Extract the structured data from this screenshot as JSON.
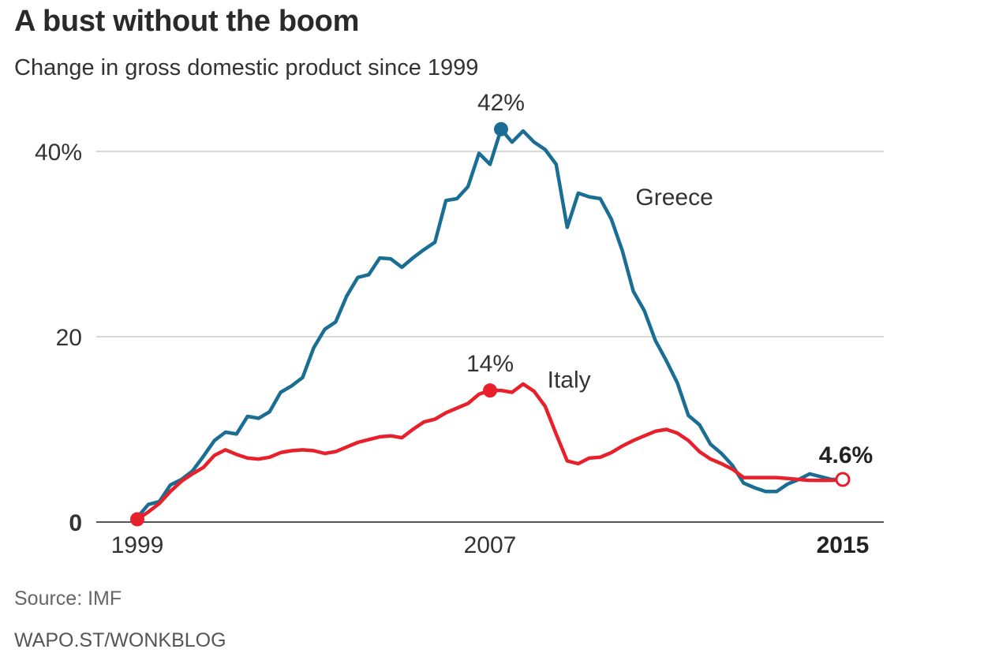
{
  "title": "A bust without the boom",
  "subtitle": "Change in gross domestic product since 1999",
  "source": "Source: IMF",
  "credit": "WAPO.ST/WONKBLOG",
  "colors": {
    "greece": "#1a6e93",
    "italy": "#e8202b",
    "grid": "#cccccc",
    "axis": "#555555"
  },
  "chart_data": {
    "type": "line",
    "title": "A bust without the boom",
    "subtitle": "Change in gross domestic product since 1999",
    "xlabel": "",
    "ylabel": "",
    "xlim": [
      1999,
      2015
    ],
    "ylim": [
      0,
      40
    ],
    "x_ticks": [
      {
        "value": 1999,
        "label": "1999",
        "bold": false
      },
      {
        "value": 2007,
        "label": "2007",
        "bold": false
      },
      {
        "value": 2015,
        "label": "2015",
        "bold": true
      }
    ],
    "y_ticks": [
      {
        "value": 0,
        "label": "0",
        "bold": true
      },
      {
        "value": 20,
        "label": "20",
        "bold": false
      },
      {
        "value": 40,
        "label": "40%",
        "bold": false
      }
    ],
    "grid": true,
    "series": [
      {
        "name": "Greece",
        "color": "#1a6e93",
        "x": [
          1999.0,
          1999.25,
          1999.5,
          1999.75,
          2000.0,
          2000.25,
          2000.5,
          2000.75,
          2001.0,
          2001.25,
          2001.5,
          2001.75,
          2002.0,
          2002.25,
          2002.5,
          2002.75,
          2003.0,
          2003.25,
          2003.5,
          2003.75,
          2004.0,
          2004.25,
          2004.5,
          2004.75,
          2005.0,
          2005.25,
          2005.5,
          2005.75,
          2006.0,
          2006.25,
          2006.5,
          2006.75,
          2007.0,
          2007.25,
          2007.5,
          2007.75,
          2008.0,
          2008.25,
          2008.5,
          2008.75,
          2009.0,
          2009.25,
          2009.5,
          2009.75,
          2010.0,
          2010.25,
          2010.5,
          2010.75,
          2011.0,
          2011.25,
          2011.5,
          2011.75,
          2012.0,
          2012.25,
          2012.5,
          2012.75,
          2013.0,
          2013.25,
          2013.5,
          2013.75,
          2014.0,
          2014.25,
          2014.5,
          2014.75,
          2015.0
        ],
        "values": [
          0.5,
          1.9,
          2.2,
          4.0,
          4.6,
          5.5,
          7.1,
          8.8,
          9.7,
          9.5,
          11.4,
          11.2,
          11.9,
          14.0,
          14.7,
          15.6,
          18.8,
          20.8,
          21.6,
          24.4,
          26.4,
          26.7,
          28.5,
          28.4,
          27.5,
          28.5,
          29.4,
          30.2,
          34.7,
          34.9,
          36.2,
          39.8,
          38.6,
          42.4,
          41.0,
          42.2,
          41.0,
          40.2,
          38.6,
          31.8,
          35.5,
          35.1,
          34.9,
          32.7,
          29.3,
          24.9,
          22.8,
          19.6,
          17.4,
          15.0,
          11.5,
          10.5,
          8.4,
          7.4,
          6.1,
          4.2,
          3.7,
          3.3,
          3.3,
          4.1,
          4.6,
          5.2,
          4.9,
          4.6,
          4.6
        ],
        "label_value": 42.4,
        "label_x": 2007.25
      },
      {
        "name": "Italy",
        "color": "#e8202b",
        "x": [
          1999.0,
          1999.25,
          1999.5,
          1999.75,
          2000.0,
          2000.25,
          2000.5,
          2000.75,
          2001.0,
          2001.25,
          2001.5,
          2001.75,
          2002.0,
          2002.25,
          2002.5,
          2002.75,
          2003.0,
          2003.25,
          2003.5,
          2003.75,
          2004.0,
          2004.25,
          2004.5,
          2004.75,
          2005.0,
          2005.25,
          2005.5,
          2005.75,
          2006.0,
          2006.25,
          2006.5,
          2006.75,
          2007.0,
          2007.25,
          2007.5,
          2007.75,
          2008.0,
          2008.25,
          2008.5,
          2008.75,
          2009.0,
          2009.25,
          2009.5,
          2009.75,
          2010.0,
          2010.25,
          2010.5,
          2010.75,
          2011.0,
          2011.25,
          2011.5,
          2011.75,
          2012.0,
          2012.25,
          2012.5,
          2012.75,
          2013.0,
          2013.25,
          2013.5,
          2013.75,
          2014.0,
          2014.25,
          2014.5,
          2014.75,
          2015.0
        ],
        "values": [
          0.3,
          1.1,
          2.0,
          3.3,
          4.4,
          5.2,
          5.9,
          7.2,
          7.8,
          7.3,
          6.9,
          6.8,
          7.0,
          7.5,
          7.7,
          7.8,
          7.7,
          7.4,
          7.6,
          8.1,
          8.6,
          8.9,
          9.2,
          9.3,
          9.1,
          10.0,
          10.8,
          11.1,
          11.8,
          12.3,
          12.8,
          13.8,
          14.2,
          14.2,
          14.0,
          14.9,
          14.1,
          12.5,
          9.5,
          6.6,
          6.3,
          6.9,
          7.0,
          7.5,
          8.2,
          8.8,
          9.3,
          9.8,
          10.0,
          9.6,
          8.8,
          7.6,
          6.8,
          6.3,
          5.7,
          4.8,
          4.8,
          4.8,
          4.8,
          4.7,
          4.6,
          4.5,
          4.5,
          4.5,
          4.6
        ],
        "label_value": 14.2,
        "label_x": 2007.0
      }
    ],
    "annotations": [
      {
        "text": "42%",
        "x": 2007.25,
        "y": 42.4,
        "series": "Greece",
        "bold": false
      },
      {
        "text": "14%",
        "x": 2007.0,
        "y": 14.2,
        "series": "Italy",
        "bold": false
      },
      {
        "text": "4.6%",
        "x": 2015.0,
        "y": 4.6,
        "series": "Italy",
        "bold": true
      }
    ]
  }
}
